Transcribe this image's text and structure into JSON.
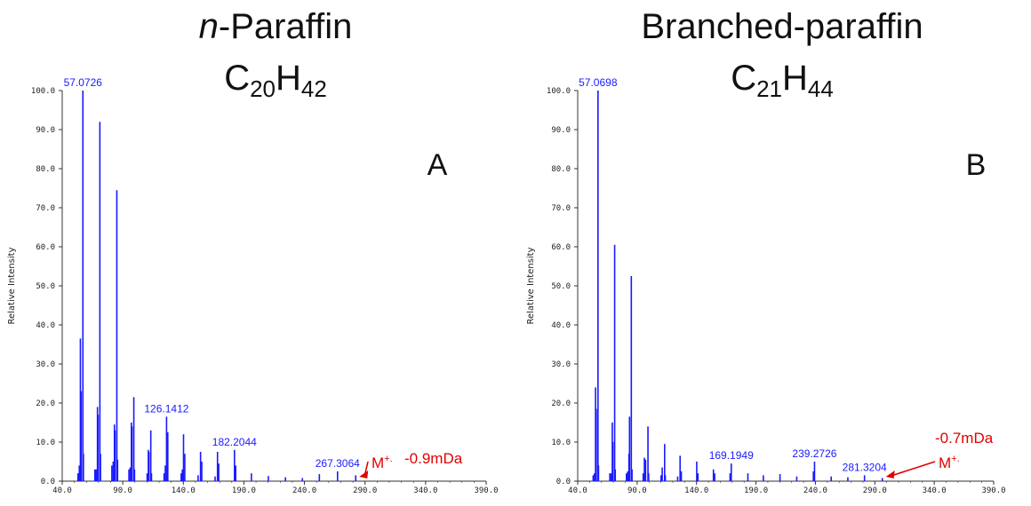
{
  "chart_data": [
    {
      "type": "bar",
      "title_prefix": "n",
      "title_rest": "-Paraffin",
      "formula": {
        "c": "C",
        "c_sub": "20",
        "h": "H",
        "h_sub": "42"
      },
      "panel": "A",
      "xlabel": "",
      "ylabel": "Relative Intensity",
      "xlim": [
        40,
        390
      ],
      "ylim": [
        0,
        100
      ],
      "x_ticks": [
        "40.0",
        "90.0",
        "140.0",
        "190.0",
        "240.0",
        "290.0",
        "340.0",
        "390.0"
      ],
      "y_ticks": [
        "0.0",
        "10.0",
        "20.0",
        "30.0",
        "40.0",
        "50.0",
        "60.0",
        "70.0",
        "80.0",
        "90.0",
        "100.0"
      ],
      "peaks": [
        [
          53.0,
          2
        ],
        [
          54.1,
          4
        ],
        [
          55.0,
          36.5
        ],
        [
          55.6,
          23
        ],
        [
          57.07,
          100
        ],
        [
          57.5,
          7
        ],
        [
          67.0,
          3
        ],
        [
          68.1,
          3
        ],
        [
          69.1,
          19
        ],
        [
          69.6,
          17
        ],
        [
          71.09,
          92
        ],
        [
          71.6,
          7
        ],
        [
          81.0,
          4
        ],
        [
          82.1,
          5
        ],
        [
          83.1,
          14.5
        ],
        [
          83.6,
          13
        ],
        [
          85.1,
          74.5
        ],
        [
          85.7,
          5.5
        ],
        [
          95.1,
          3
        ],
        [
          96.1,
          3.5
        ],
        [
          97.1,
          15
        ],
        [
          97.6,
          14
        ],
        [
          99.12,
          21.5
        ],
        [
          99.7,
          3
        ],
        [
          110.1,
          2
        ],
        [
          111.1,
          8
        ],
        [
          111.6,
          7.5
        ],
        [
          113.13,
          13
        ],
        [
          113.7,
          2
        ],
        [
          124.1,
          2
        ],
        [
          125.1,
          4
        ],
        [
          126.14,
          16.5
        ],
        [
          127.15,
          12.5
        ],
        [
          138.2,
          2
        ],
        [
          139.2,
          3
        ],
        [
          140.16,
          12
        ],
        [
          141.17,
          7
        ],
        [
          152.2,
          1.5
        ],
        [
          154.2,
          7.5
        ],
        [
          155.2,
          5
        ],
        [
          166.2,
          1.2
        ],
        [
          168.2,
          7.5
        ],
        [
          169.2,
          4.5
        ],
        [
          182.2,
          8
        ],
        [
          183.2,
          4
        ],
        [
          196.2,
          2
        ],
        [
          210.2,
          1.3
        ],
        [
          224.3,
          1
        ],
        [
          238.3,
          0.8
        ],
        [
          252.3,
          1.8
        ],
        [
          267.3,
          2.5
        ],
        [
          282.3,
          1.5
        ]
      ],
      "peak_labels": [
        {
          "text": "57.0726",
          "x": 57.07,
          "y": 100
        },
        {
          "text": "126.1412",
          "x": 126.14,
          "y": 16.5
        },
        {
          "text": "182.2044",
          "x": 182.2,
          "y": 8
        },
        {
          "text": "267.3064",
          "x": 267.3,
          "y": 2.5
        }
      ],
      "ion_label": "M",
      "ion_sup": "+.",
      "ion_x": 282.3,
      "mass_error": "-0.9mDa"
    },
    {
      "type": "bar",
      "title_prefix": "",
      "title_rest": "Branched-paraffin",
      "formula": {
        "c": "C",
        "c_sub": "21",
        "h": "H",
        "h_sub": "44"
      },
      "panel": "B",
      "xlabel": "",
      "ylabel": "Relative Intensity",
      "xlim": [
        40,
        390
      ],
      "ylim": [
        0,
        100
      ],
      "x_ticks": [
        "40.0",
        "90.0",
        "140.0",
        "190.0",
        "240.0",
        "290.0",
        "340.0",
        "390.0"
      ],
      "y_ticks": [
        "0.0",
        "10.0",
        "20.0",
        "30.0",
        "40.0",
        "50.0",
        "60.0",
        "70.0",
        "80.0",
        "90.0",
        "100.0"
      ],
      "peaks": [
        [
          53.0,
          1.5
        ],
        [
          54.1,
          2
        ],
        [
          55.0,
          24
        ],
        [
          55.6,
          18.5
        ],
        [
          57.07,
          100
        ],
        [
          57.5,
          4
        ],
        [
          67.0,
          2
        ],
        [
          68.1,
          2
        ],
        [
          69.1,
          15
        ],
        [
          69.6,
          10
        ],
        [
          71.09,
          60.5
        ],
        [
          71.6,
          3
        ],
        [
          81.0,
          2
        ],
        [
          82.1,
          2.5
        ],
        [
          83.1,
          7
        ],
        [
          83.6,
          16.5
        ],
        [
          85.1,
          52.5
        ],
        [
          85.7,
          3
        ],
        [
          95.1,
          2
        ],
        [
          96.1,
          6
        ],
        [
          97.1,
          5.5
        ],
        [
          99.12,
          14
        ],
        [
          99.7,
          2
        ],
        [
          110.1,
          1.5
        ],
        [
          111.1,
          3.5
        ],
        [
          113.13,
          9.5
        ],
        [
          113.7,
          1.5
        ],
        [
          124.1,
          1.2
        ],
        [
          126.14,
          6.5
        ],
        [
          127.15,
          2.5
        ],
        [
          140.16,
          5
        ],
        [
          141.17,
          2
        ],
        [
          154.2,
          3
        ],
        [
          155.2,
          2
        ],
        [
          168.2,
          2
        ],
        [
          169.19,
          4.5
        ],
        [
          183.2,
          2
        ],
        [
          196.2,
          1.5
        ],
        [
          210.2,
          1.8
        ],
        [
          224.3,
          1.2
        ],
        [
          238.3,
          2.5
        ],
        [
          239.27,
          5
        ],
        [
          253.3,
          1.2
        ],
        [
          267.3,
          1
        ],
        [
          281.32,
          1.5
        ],
        [
          296.3,
          0.8
        ]
      ],
      "peak_labels": [
        {
          "text": "57.0698",
          "x": 57.07,
          "y": 100
        },
        {
          "text": "169.1949",
          "x": 169.19,
          "y": 4.5
        },
        {
          "text": "239.2726",
          "x": 239.27,
          "y": 5
        },
        {
          "text": "281.3204",
          "x": 281.32,
          "y": 1.5
        }
      ],
      "ion_label": "M",
      "ion_sup": "+.",
      "ion_x": 296.3,
      "mass_error": "-0.7mDa"
    }
  ]
}
